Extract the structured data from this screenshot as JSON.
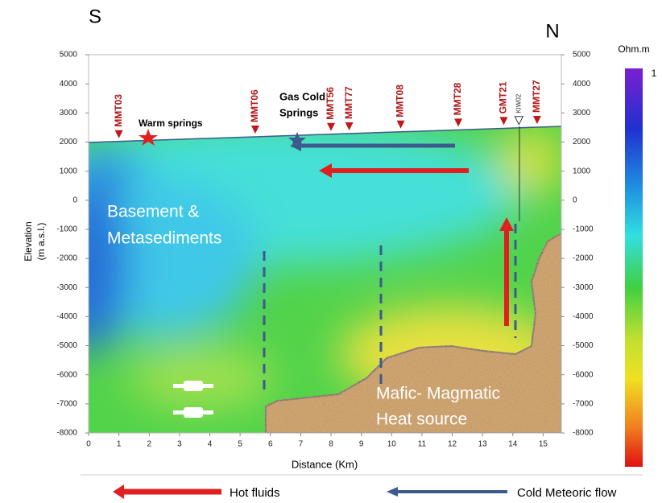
{
  "chart_data": {
    "type": "cross-section",
    "south_label": "S",
    "north_label": "N",
    "x_label": "Distance (Km)",
    "y_label": [
      "Elevation",
      "(m a.s.l.)"
    ],
    "xlim": [
      0,
      15.6
    ],
    "xticks": [
      0,
      1,
      2,
      3,
      4,
      5,
      6,
      7,
      8,
      9,
      10,
      11,
      12,
      13,
      14,
      15
    ],
    "ylim": [
      -8000,
      5000
    ],
    "yticks": [
      -8000,
      -7000,
      -6000,
      -5000,
      -4000,
      -3000,
      -2000,
      -1000,
      0,
      1000,
      2000,
      3000,
      4000,
      5000
    ],
    "y2lim": [
      -8000,
      5000
    ],
    "y2ticks": [
      -8000,
      -7000,
      -6000,
      -5000,
      -4000,
      -3000,
      -2000,
      -1000,
      0,
      1000,
      2000,
      3000,
      4000,
      5000
    ],
    "wells": [
      {
        "name": "MMT03",
        "x": 1.0
      },
      {
        "name": "MMT06",
        "x": 5.5
      },
      {
        "name": "MMT56",
        "x": 8.0
      },
      {
        "name": "MMT77",
        "x": 8.6
      },
      {
        "name": "MMT08",
        "x": 10.3
      },
      {
        "name": "MMT28",
        "x": 12.2
      },
      {
        "name": "GMT21",
        "x": 13.7
      },
      {
        "name": "KIW02",
        "x": 14.2
      },
      {
        "name": "MMT27",
        "x": 14.8
      }
    ],
    "annotations": {
      "warm_springs": "Warm springs",
      "gas_cold_springs": [
        "Gas Cold",
        "Springs"
      ],
      "basement": [
        "Basement &",
        "Metasediments"
      ],
      "magmatic": [
        "Mafic- Magmatic",
        "Heat source"
      ]
    },
    "colorbar": {
      "title": "Ohm.m",
      "label": "1"
    },
    "legend": [
      {
        "name": "Hot fluids",
        "color": "#e02020"
      },
      {
        "name": "Cold Meteoric flow",
        "color": "#3c5a8c"
      }
    ]
  }
}
